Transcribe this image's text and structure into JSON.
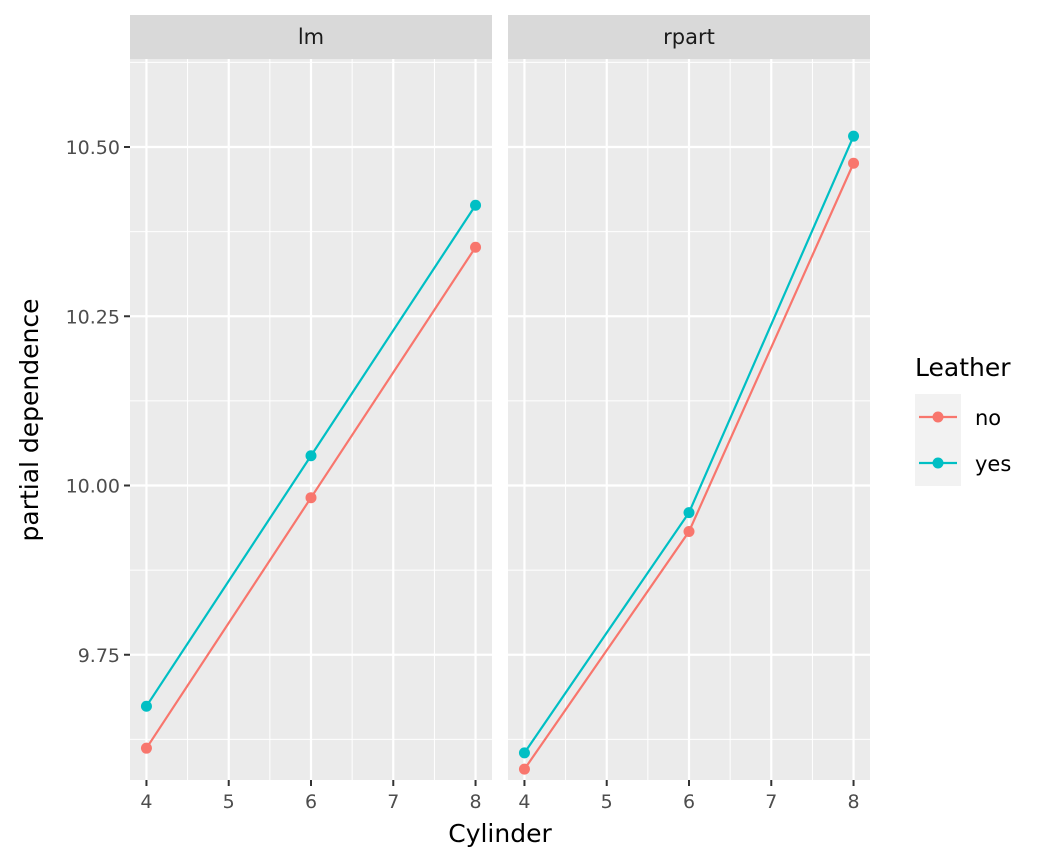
{
  "chart_data": {
    "type": "line",
    "xlabel": "Cylinder",
    "ylabel": "partial dependence",
    "xlim": [
      3.8,
      8.2
    ],
    "ylim": [
      9.565,
      10.63
    ],
    "x_ticks": [
      4,
      5,
      6,
      7,
      8
    ],
    "y_ticks": [
      9.75,
      10.0,
      10.25,
      10.5
    ],
    "y_tick_labels": [
      "9.75",
      "10.00",
      "10.25",
      "10.50"
    ],
    "grid": true,
    "legend": {
      "title": "Leather",
      "position": "right",
      "entries": [
        {
          "label": "no",
          "color": "#F8766D"
        },
        {
          "label": "yes",
          "color": "#00BFC4"
        }
      ]
    },
    "panels": [
      {
        "strip": "lm",
        "series": [
          {
            "name": "no",
            "color": "#F8766D",
            "x": [
              4,
              6,
              8
            ],
            "y": [
              9.612,
              9.982,
              10.352
            ]
          },
          {
            "name": "yes",
            "color": "#00BFC4",
            "x": [
              4,
              6,
              8
            ],
            "y": [
              9.674,
              10.044,
              10.414
            ]
          }
        ]
      },
      {
        "strip": "rpart",
        "series": [
          {
            "name": "no",
            "color": "#F8766D",
            "x": [
              4,
              6,
              8
            ],
            "y": [
              9.581,
              9.932,
              10.476
            ]
          },
          {
            "name": "yes",
            "color": "#00BFC4",
            "x": [
              4,
              6,
              8
            ],
            "y": [
              9.605,
              9.96,
              10.516
            ]
          }
        ]
      }
    ]
  }
}
